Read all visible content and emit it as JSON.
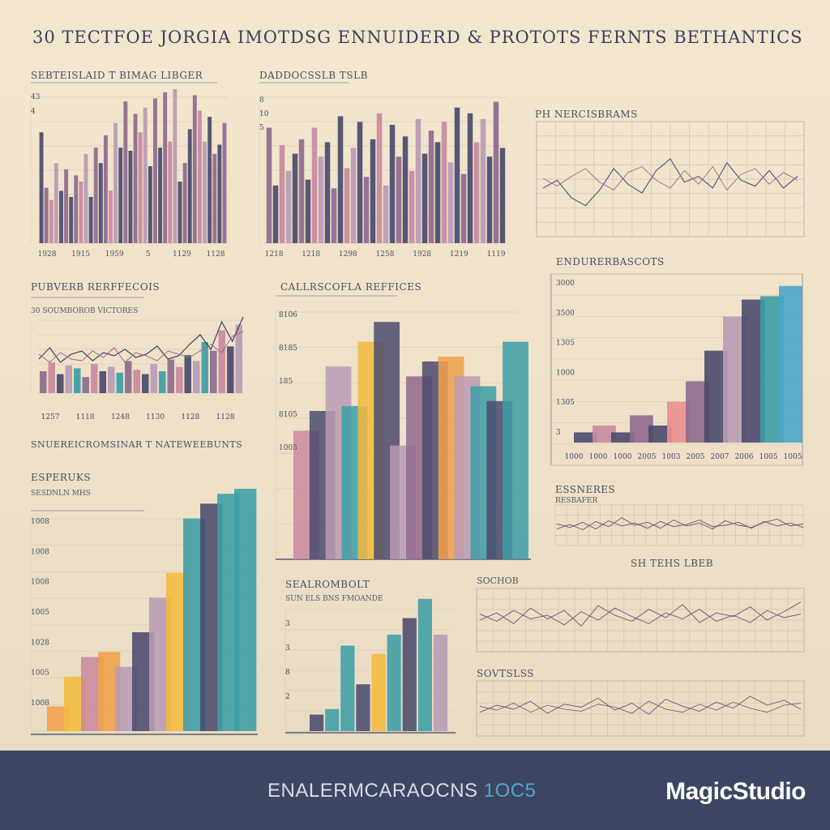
{
  "header": {
    "title": "30 TECTFOE JORGIA IMOTDSG ENNUIDERD & PROTOTS FERNTS BETHANTICS"
  },
  "footer": {
    "caption_main": "ENALERMCARAOCNS",
    "caption_accent": "1OC5",
    "brand": "MagicStudio"
  },
  "colors": {
    "navy": "#4b4a6e",
    "plum": "#8f6a8e",
    "pink": "#c98a9e",
    "teal": "#3c9ea6",
    "orange": "#f0a04b",
    "yellow": "#f2b93e",
    "rose": "#e98f8f",
    "mauve": "#b89bb4",
    "cyan": "#4aa5c9"
  },
  "chart_data": [
    {
      "id": "p1",
      "type": "bar",
      "title": "SEBTEISLAID T BIMAG LIBGER",
      "subtitle": "",
      "ylabels": [
        "43",
        "4"
      ],
      "xlabels": [
        "1928",
        "1915",
        "1959",
        "5",
        "1129",
        "1128"
      ],
      "values": [
        72,
        36,
        28,
        52,
        34,
        48,
        30,
        44,
        40,
        58,
        30,
        62,
        52,
        70,
        34,
        78,
        62,
        92,
        60,
        84,
        72,
        88,
        50,
        94,
        62,
        98,
        66,
        100,
        40,
        52,
        74,
        96,
        86,
        66,
        82,
        58,
        64,
        78
      ]
    },
    {
      "id": "p2",
      "type": "bar",
      "title": "DADDOCSSLB TSLB",
      "subtitle": "",
      "ylabels": [
        "8",
        "10",
        "5"
      ],
      "xlabels": [
        "1218",
        "1218",
        "1298",
        "1258",
        "1928",
        "1219",
        "1119"
      ],
      "values": [
        80,
        40,
        68,
        50,
        62,
        72,
        44,
        80,
        60,
        70,
        38,
        88,
        52,
        66,
        84,
        46,
        72,
        90,
        40,
        82,
        60,
        74,
        50,
        86,
        62,
        78,
        70,
        84,
        56,
        94,
        48,
        90,
        70,
        86,
        60,
        98,
        66
      ]
    },
    {
      "id": "p3",
      "type": "line",
      "title": "PH NERCISBRAMS",
      "subtitle": "",
      "xlabels": [],
      "series": [
        {
          "name": "",
          "values": [
            40,
            48,
            30,
            22,
            38,
            60,
            44,
            35,
            58,
            70,
            46,
            52,
            40,
            66,
            48,
            42,
            58,
            40,
            52
          ]
        },
        {
          "name": "",
          "values": [
            50,
            42,
            52,
            60,
            46,
            38,
            56,
            62,
            48,
            40,
            58,
            44,
            62,
            38,
            54,
            60,
            44,
            56,
            48
          ]
        }
      ]
    },
    {
      "id": "p4",
      "type": "line",
      "title": "PUBVERB RERFFECOIS",
      "subtitle": "30 SOUMBOROB VICTORES",
      "xlabels": [
        "1257",
        "1118",
        "1248",
        "1130",
        "1128",
        "1128"
      ],
      "series": [
        {
          "name": "",
          "values": [
            42,
            56,
            38,
            48,
            52,
            40,
            50,
            46,
            54,
            44,
            48,
            58,
            42,
            46,
            60,
            72,
            54,
            88,
            64,
            94
          ]
        },
        {
          "name": "",
          "values": [
            48,
            38,
            50,
            42,
            40,
            52,
            44,
            56,
            38,
            50,
            46,
            40,
            52,
            48,
            44,
            52,
            60,
            50,
            70,
            76
          ]
        }
      ],
      "bars": [
        30,
        42,
        26,
        38,
        34,
        22,
        40,
        30,
        36,
        28,
        44,
        32,
        26,
        40,
        30,
        46,
        36,
        52,
        44,
        70,
        58,
        86,
        64,
        94
      ]
    },
    {
      "id": "p5",
      "type": "bar",
      "title": "CALLRSCOFLA REFFICES",
      "subtitle": "",
      "ylabels": [
        "8106",
        "8185",
        "185",
        "8105",
        "1005"
      ],
      "xlabels": [],
      "values": [
        52,
        60,
        78,
        62,
        88,
        96,
        46,
        74,
        80,
        82,
        74,
        70,
        64,
        88
      ]
    },
    {
      "id": "p6",
      "type": "bar",
      "title": "ENDURERBASCOTS",
      "subtitle": "",
      "ylabels": [
        "3000",
        "3500",
        "1305",
        "1000",
        "1305",
        "3"
      ],
      "xlabels": [
        "1000",
        "1000",
        "1000",
        "2005",
        "1003",
        "2005",
        "2007",
        "2006",
        "1005",
        "1005"
      ],
      "values": [
        6,
        10,
        6,
        16,
        10,
        24,
        36,
        54,
        74,
        84,
        86,
        92
      ]
    },
    {
      "id": "p7",
      "type": "line",
      "title": "SNUEREICROMSINAR T NATEWEEBUNTS",
      "subtitle": "",
      "xlabels": [],
      "series": []
    },
    {
      "id": "p8",
      "type": "bar",
      "title": "ESPERUKS",
      "subtitle": "SESDNLN MHS",
      "ylabels": [
        "1008",
        "1008",
        "1008",
        "1005",
        "1028",
        "1005",
        "1008"
      ],
      "xlabels": [],
      "values": [
        10,
        22,
        30,
        32,
        26,
        40,
        54,
        64,
        86,
        92,
        96,
        98
      ]
    },
    {
      "id": "p9",
      "type": "line",
      "title": "ESSNERES",
      "subtitle": "RESBAFER",
      "xlabels": [],
      "series": [
        {
          "name": "",
          "values": [
            40,
            52,
            38,
            60,
            46,
            70,
            50,
            58,
            42,
            64,
            48,
            56,
            40,
            62,
            50,
            44,
            58,
            66,
            48,
            54
          ]
        },
        {
          "name": "",
          "values": [
            54,
            44,
            58,
            40,
            62,
            48,
            56,
            42,
            60,
            46,
            52,
            64,
            46,
            50,
            58,
            42,
            60,
            48,
            56,
            44
          ]
        }
      ]
    },
    {
      "id": "p10",
      "type": "bar",
      "title": "SEALROMBOLT",
      "subtitle": "SUN ELS BNS FMOANDE",
      "ylabels": [
        "3",
        "3",
        "8",
        "2"
      ],
      "xlabels": [],
      "values": [
        12,
        16,
        62,
        34,
        56,
        70,
        82,
        96,
        70
      ]
    },
    {
      "id": "p11",
      "type": "line",
      "title": "SOCHOB",
      "subtitle": "SH TEHS LBEB",
      "xlabels": [],
      "series": [
        {
          "name": "",
          "values": [
            50,
            62,
            44,
            70,
            52,
            66,
            40,
            74,
            58,
            48,
            68,
            54,
            76,
            46,
            62,
            56,
            72,
            50,
            64,
            80
          ]
        },
        {
          "name": "",
          "values": [
            60,
            48,
            66,
            52,
            58,
            42,
            64,
            50,
            70,
            56,
            44,
            62,
            52,
            68,
            48,
            58,
            46,
            66,
            54,
            60
          ]
        }
      ]
    },
    {
      "id": "p12",
      "type": "line",
      "title": "SOVTSLSS",
      "subtitle": "",
      "xlabels": [],
      "series": [
        {
          "name": "",
          "values": [
            44,
            58,
            50,
            66,
            42,
            60,
            54,
            72,
            48,
            62,
            40,
            70,
            56,
            46,
            64,
            52,
            76,
            58,
            68,
            50
          ]
        },
        {
          "name": "",
          "values": [
            56,
            48,
            62,
            44,
            58,
            50,
            46,
            60,
            54,
            42,
            66,
            50,
            44,
            60,
            48,
            64,
            52,
            44,
            58,
            62
          ]
        }
      ]
    }
  ]
}
